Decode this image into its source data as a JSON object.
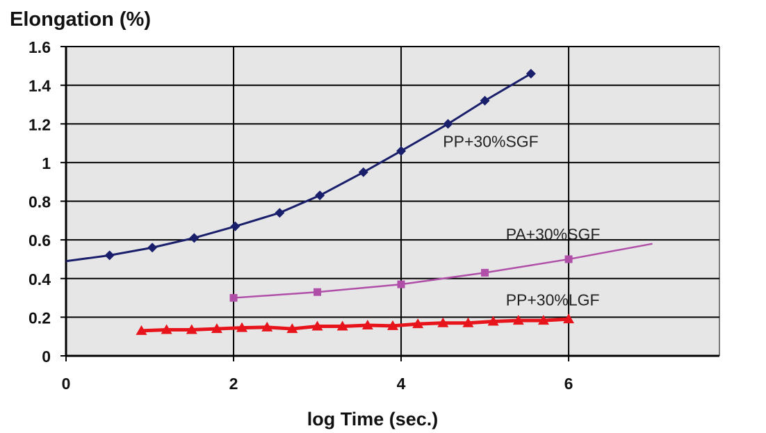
{
  "chart_data": {
    "type": "line",
    "title": "Elongation (%)",
    "xlabel": "log Time (sec.)",
    "ylabel": "",
    "xlim": [
      0,
      7.8
    ],
    "ylim": [
      0,
      1.6
    ],
    "x_ticks": [
      "0",
      "2",
      "4",
      "6"
    ],
    "x_tick_values": [
      0,
      2,
      4,
      6
    ],
    "y_ticks": [
      "0",
      "0.2",
      "0.4",
      "0.6",
      "0.8",
      "1",
      "1.2",
      "1.4",
      "1.6"
    ],
    "y_tick_values": [
      0,
      0.2,
      0.4,
      0.6,
      0.8,
      1.0,
      1.2,
      1.4,
      1.6
    ],
    "grid": true,
    "background": "#e6e6e6",
    "series": [
      {
        "name": "PP+30%SGF",
        "color": "#1a1f6b",
        "marker": "diamond",
        "points": [
          [
            0,
            0.49
          ],
          [
            0.52,
            0.52
          ],
          [
            1.03,
            0.56
          ],
          [
            1.53,
            0.61
          ],
          [
            2.02,
            0.67
          ],
          [
            2.55,
            0.74
          ],
          [
            3.03,
            0.83
          ],
          [
            3.55,
            0.95
          ],
          [
            4.0,
            1.06
          ],
          [
            4.56,
            1.2
          ],
          [
            5.0,
            1.32
          ],
          [
            5.55,
            1.46
          ]
        ],
        "marker_points": [
          [
            0.52,
            0.52
          ],
          [
            1.03,
            0.56
          ],
          [
            1.53,
            0.61
          ],
          [
            2.02,
            0.67
          ],
          [
            2.55,
            0.74
          ],
          [
            3.03,
            0.83
          ],
          [
            3.55,
            0.95
          ],
          [
            4.0,
            1.06
          ],
          [
            4.56,
            1.2
          ],
          [
            5.0,
            1.32
          ],
          [
            5.55,
            1.46
          ]
        ]
      },
      {
        "name": "PA+30%SGF",
        "color": "#b04fa8",
        "marker": "square",
        "points": [
          [
            2.0,
            0.3
          ],
          [
            3.0,
            0.33
          ],
          [
            4.0,
            0.37
          ],
          [
            5.0,
            0.43
          ],
          [
            6.0,
            0.5
          ],
          [
            7.0,
            0.58
          ]
        ],
        "marker_points": [
          [
            2.0,
            0.3
          ],
          [
            3.0,
            0.33
          ],
          [
            4.0,
            0.37
          ],
          [
            5.0,
            0.43
          ],
          [
            6.0,
            0.5
          ]
        ]
      },
      {
        "name": "PP+30%LGF",
        "color": "#e8141c",
        "marker": "triangle",
        "points": [
          [
            0.9,
            0.13
          ],
          [
            1.2,
            0.135
          ],
          [
            1.5,
            0.135
          ],
          [
            1.8,
            0.14
          ],
          [
            2.1,
            0.145
          ],
          [
            2.4,
            0.148
          ],
          [
            2.7,
            0.14
          ],
          [
            3.0,
            0.153
          ],
          [
            3.3,
            0.153
          ],
          [
            3.6,
            0.158
          ],
          [
            3.9,
            0.155
          ],
          [
            4.2,
            0.165
          ],
          [
            4.5,
            0.17
          ],
          [
            4.8,
            0.17
          ],
          [
            5.1,
            0.178
          ],
          [
            5.4,
            0.183
          ],
          [
            5.7,
            0.183
          ],
          [
            6.0,
            0.19
          ]
        ],
        "marker_points": [
          [
            0.9,
            0.13
          ],
          [
            1.2,
            0.135
          ],
          [
            1.5,
            0.135
          ],
          [
            1.8,
            0.14
          ],
          [
            2.1,
            0.145
          ],
          [
            2.4,
            0.148
          ],
          [
            2.7,
            0.14
          ],
          [
            3.0,
            0.153
          ],
          [
            3.3,
            0.153
          ],
          [
            3.6,
            0.158
          ],
          [
            3.9,
            0.155
          ],
          [
            4.2,
            0.165
          ],
          [
            4.5,
            0.17
          ],
          [
            4.8,
            0.17
          ],
          [
            5.1,
            0.178
          ],
          [
            5.4,
            0.183
          ],
          [
            5.7,
            0.183
          ],
          [
            6.0,
            0.19
          ]
        ]
      }
    ]
  }
}
